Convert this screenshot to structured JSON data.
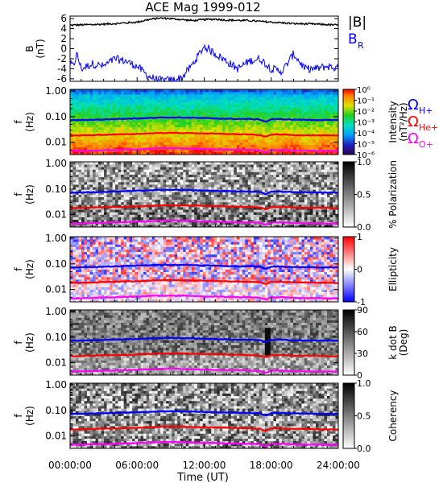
{
  "title": "ACE Mag 1999-012",
  "xlabel": "Time (UT)",
  "colors": {
    "cyclotron_h": "#0000ff",
    "cyclotron_he": "#ff0000",
    "cyclotron_o": "#ff00ff",
    "b_total": "#000000",
    "b_radial": "#0000ff"
  },
  "chart_data": [
    {
      "type": "line",
      "panel": "field",
      "ylabel": "B (nT)",
      "ylim": [
        -6.5,
        6.5
      ],
      "yticks": [
        "6",
        "4",
        "2",
        "0",
        "-2",
        "-4",
        "-6"
      ],
      "x_ticks": [
        "00:00:00",
        "06:00:00",
        "12:00:00",
        "18:00:00",
        "24:00:00"
      ],
      "series": [
        {
          "name": "|B|",
          "x": [
            0,
            2,
            4,
            6,
            7,
            8,
            9,
            10,
            11,
            12,
            13,
            14,
            16,
            18,
            20,
            22,
            24
          ],
          "values": [
            4.7,
            4.8,
            5.0,
            5.3,
            5.8,
            6.1,
            6.0,
            5.8,
            5.6,
            5.8,
            5.9,
            5.7,
            5.6,
            5.3,
            5.0,
            4.9,
            4.7
          ]
        },
        {
          "name": "B",
          "sub": "R",
          "x": [
            0,
            0.3,
            0.6,
            1,
            2,
            3,
            4,
            5,
            6,
            6.5,
            7,
            8,
            9,
            10,
            11,
            12,
            13,
            14,
            15,
            16,
            17,
            18,
            19,
            20,
            21,
            22,
            23,
            24
          ],
          "values": [
            -3.0,
            -3.5,
            -1.0,
            -4.0,
            -3.0,
            -3.5,
            -2.0,
            -2.5,
            -3.5,
            -4.5,
            -5.5,
            -6.3,
            -6.3,
            -5.8,
            -3.0,
            0.5,
            -1.0,
            -2.5,
            -4.0,
            -2.5,
            -2.0,
            -4.0,
            -4.5,
            -1.0,
            -4.0,
            -4.0,
            -3.5,
            -4.0
          ]
        }
      ]
    },
    {
      "type": "heatmap",
      "panel": "intensity",
      "ylabel": "f (Hz)",
      "colorbar_label": "Intensity (nT²/Hz)",
      "colorbar_ticks": [
        "10⁰",
        "10⁻¹",
        "10⁻²",
        "10⁻³",
        "10⁻⁴",
        "10⁻⁵",
        "10⁻⁶"
      ],
      "yticks": [
        "1.00",
        "0.10",
        "0.01"
      ]
    },
    {
      "type": "heatmap",
      "panel": "polarization",
      "ylabel": "f (Hz)",
      "colorbar_label": "% Polarization",
      "colorbar_ticks": [
        "1.0",
        "0.5",
        "0.0"
      ],
      "yticks": [
        "1.00",
        "0.10",
        "0.01"
      ]
    },
    {
      "type": "heatmap",
      "panel": "ellipticity",
      "ylabel": "f (Hz)",
      "colorbar_label": "Ellipticity",
      "colorbar_ticks": [
        "1",
        "0",
        "-1"
      ],
      "yticks": [
        "1.00",
        "0.10",
        "0.01"
      ]
    },
    {
      "type": "heatmap",
      "panel": "kdotb",
      "ylabel": "f (Hz)",
      "colorbar_label": "k dot B (Deg)",
      "colorbar_ticks": [
        "90",
        "60",
        "30",
        "0"
      ],
      "yticks": [
        "1.00",
        "0.10",
        "0.01"
      ]
    },
    {
      "type": "heatmap",
      "panel": "coherency",
      "ylabel": "f (Hz)",
      "colorbar_label": "Coherency",
      "colorbar_ticks": [
        "1.0",
        "0.5",
        "0.0"
      ],
      "yticks": [
        "1.00",
        "0.10",
        "0.01"
      ]
    }
  ],
  "cyclotron_lines": {
    "x": [
      0,
      2,
      4,
      6,
      8,
      10,
      12,
      14,
      16,
      17,
      17.5,
      18,
      19,
      20,
      22,
      24
    ],
    "H+": [
      0.072,
      0.075,
      0.08,
      0.085,
      0.092,
      0.092,
      0.087,
      0.082,
      0.08,
      0.077,
      0.062,
      0.079,
      0.079,
      0.076,
      0.074,
      0.072
    ],
    "He+": [
      0.018,
      0.019,
      0.02,
      0.021,
      0.023,
      0.023,
      0.022,
      0.021,
      0.02,
      0.019,
      0.016,
      0.02,
      0.02,
      0.019,
      0.0185,
      0.018
    ],
    "O+": [
      0.0045,
      0.0047,
      0.005,
      0.0053,
      0.0058,
      0.0058,
      0.0054,
      0.0052,
      0.005,
      0.0048,
      0.004,
      0.005,
      0.005,
      0.0047,
      0.0046,
      0.0045
    ]
  },
  "legend": {
    "b_total": "|B|",
    "b_radial": "B",
    "b_radial_sub": "R",
    "omega": "Ω",
    "h_sub": "H+",
    "he_sub": "He+",
    "o_sub": "O+"
  }
}
